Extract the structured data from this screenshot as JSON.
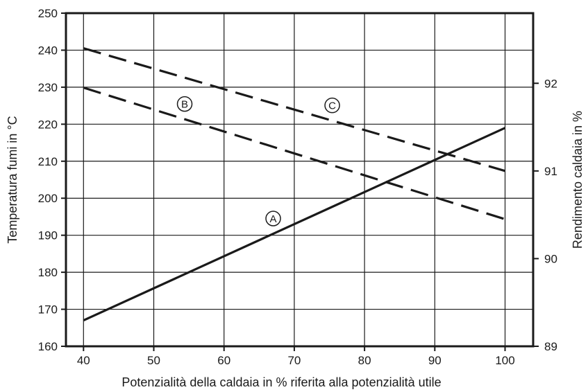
{
  "chart_data": {
    "type": "line",
    "xlabel": "Potenzialità della caldaia in % riferita alla potenzialità utile",
    "ylabel": "Temperatura fumi in °C",
    "y2label": "Rendimento caldaia in %",
    "xlim": [
      37.5,
      104
    ],
    "ylim": [
      160,
      250
    ],
    "y2lim": [
      89,
      92.8
    ],
    "x_ticks": [
      40,
      50,
      60,
      70,
      80,
      90,
      100
    ],
    "y_ticks": [
      160,
      170,
      180,
      190,
      200,
      210,
      220,
      230,
      240,
      250
    ],
    "y2_ticks": [
      89,
      90,
      91,
      92
    ],
    "grid": true,
    "colors": {
      "line": "#1a1a1a",
      "grid": "#1a1a1a"
    },
    "series": [
      {
        "name": "A",
        "axis": "left",
        "style": "solid",
        "x": [
          40,
          100
        ],
        "values": [
          167,
          219
        ]
      },
      {
        "name": "B",
        "axis": "right",
        "style": "dashed",
        "x": [
          40,
          100
        ],
        "values": [
          91.95,
          90.45
        ]
      },
      {
        "name": "C",
        "axis": "right",
        "style": "dashed",
        "x": [
          40,
          100
        ],
        "values": [
          92.4,
          91.0
        ]
      }
    ]
  }
}
